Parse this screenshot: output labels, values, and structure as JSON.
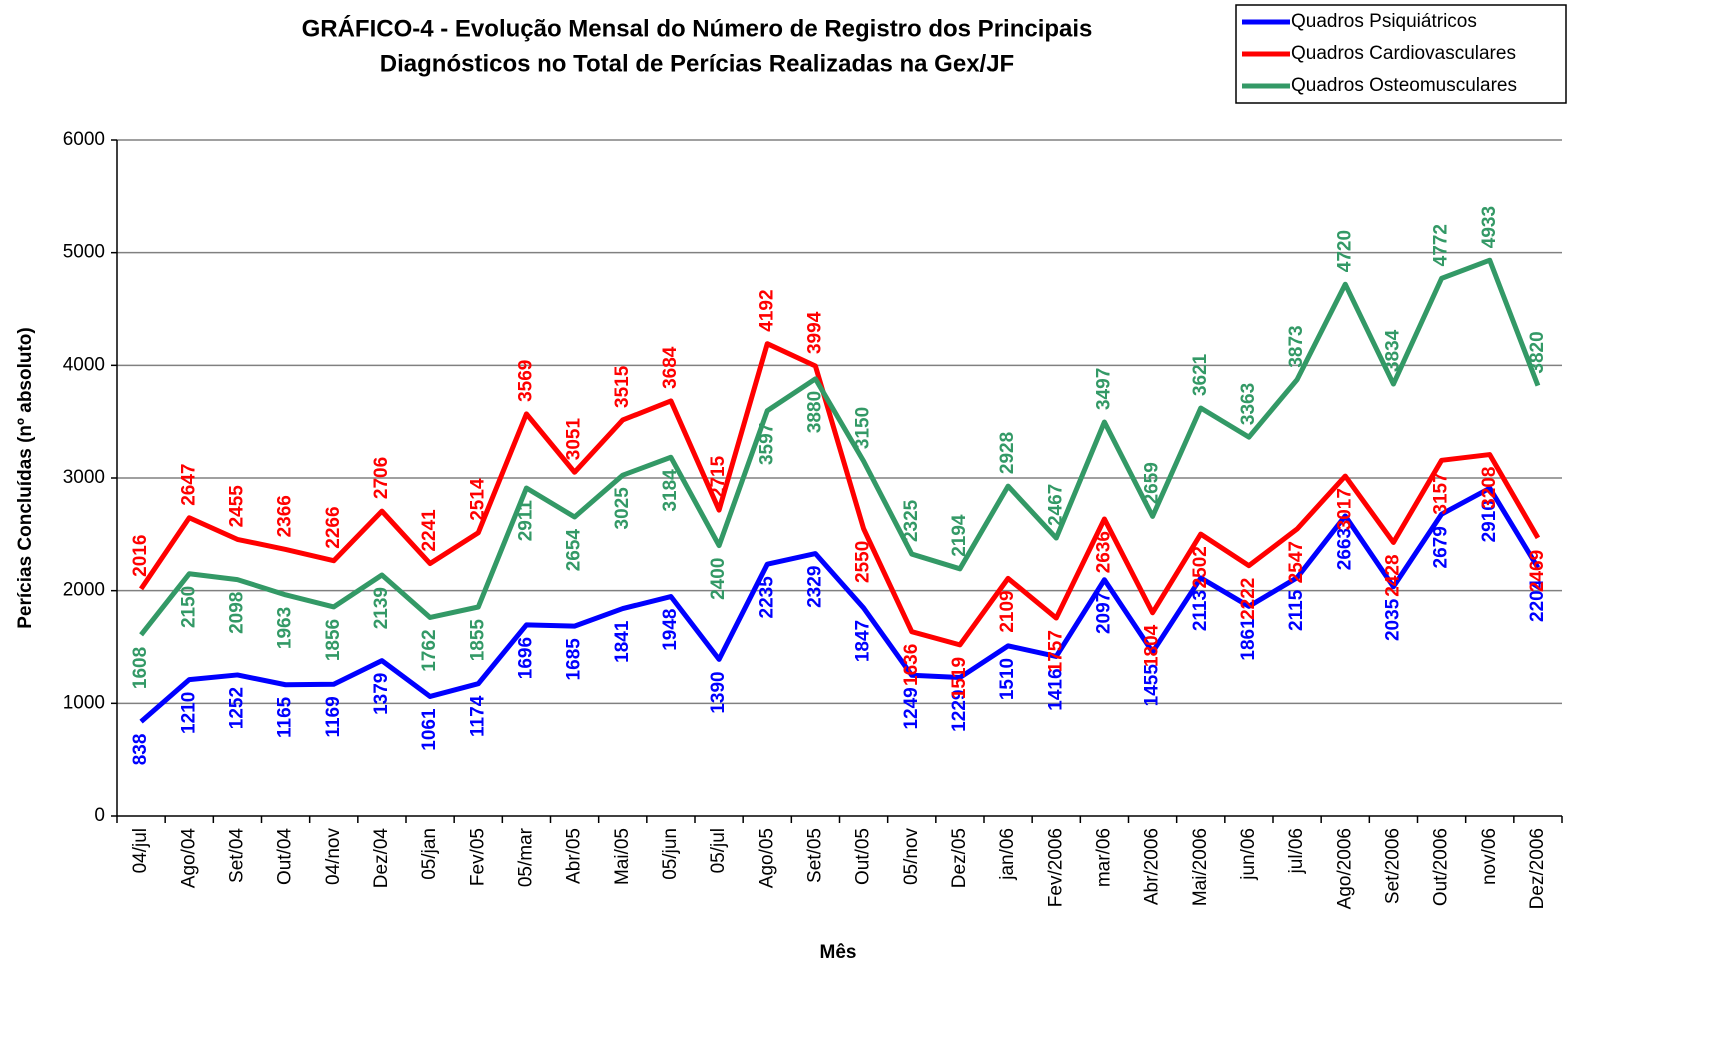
{
  "chart_data": {
    "type": "line",
    "title": "GRÁFICO-4 - Evolução Mensal do Número de Registro dos Principais",
    "subtitle": "Diagnósticos no Total de Perícias Realizadas na Gex/JF",
    "x_label": "Mês",
    "y_label": "Perícias Concluídas (nº absoluto)",
    "categories": [
      "04/jul",
      "Ago/04",
      "Set/04",
      "Out/04",
      "04/nov",
      "Dez/04",
      "05/jan",
      "Fev/05",
      "05/mar",
      "Abr/05",
      "Mai/05",
      "05/jun",
      "05/jul",
      "Ago/05",
      "Set/05",
      "Out/05",
      "05/nov",
      "Dez/05",
      "jan/06",
      "Fev/2006",
      "mar/06",
      "Abr/2006",
      "Mai/2006",
      "jun/06",
      "jul/06",
      "Ago/2006",
      "Set/2006",
      "Out/2006",
      "nov/06",
      "Dez/2006"
    ],
    "series": [
      {
        "name": "Quadros Psiquiátricos",
        "color": "#0000ff",
        "values": [
          838,
          1210,
          1252,
          1165,
          1169,
          1379,
          1061,
          1174,
          1696,
          1685,
          1841,
          1948,
          1390,
          2235,
          2329,
          1847,
          1249,
          1229,
          1510,
          1416,
          2097,
          1455,
          2113,
          1861,
          2115,
          2663,
          2035,
          2679,
          2910,
          2204
        ]
      },
      {
        "name": "Quadros Cardiovasculares",
        "color": "#ff0000",
        "values": [
          2016,
          2647,
          2455,
          2366,
          2266,
          2706,
          2241,
          2514,
          3569,
          3051,
          3515,
          3684,
          2715,
          4192,
          3994,
          2550,
          1636,
          1519,
          2109,
          1757,
          2636,
          1804,
          2502,
          2222,
          2547,
          3017,
          2428,
          3157,
          3208,
          2469
        ]
      },
      {
        "name": "Quadros Osteomusculares",
        "color": "#339966",
        "values": [
          1608,
          2150,
          2098,
          1963,
          1856,
          2139,
          1762,
          1855,
          2911,
          2654,
          3025,
          3184,
          2400,
          3597,
          3880,
          3150,
          2325,
          2194,
          2928,
          2467,
          3497,
          2659,
          3621,
          3363,
          3873,
          4720,
          3834,
          4772,
          4933,
          3820
        ]
      }
    ],
    "ylim": [
      0,
      6000
    ],
    "yticks": [
      0,
      1000,
      2000,
      3000,
      4000,
      5000,
      6000
    ],
    "grid": true,
    "legend": "top-right"
  }
}
